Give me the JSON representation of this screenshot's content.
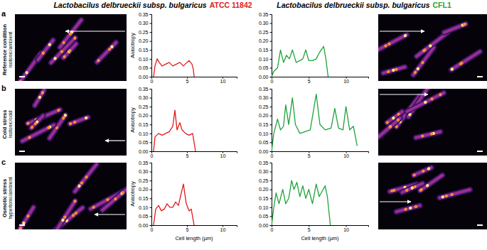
{
  "columns": [
    {
      "species": "Lactobacilus delbrueckii subsp. bulgaricus",
      "strain": "ATCC 11842",
      "color": "#e41a1c"
    },
    {
      "species": "Lactobacilus delbrueckii subsp. bulgaricus",
      "strain": "CFL1",
      "color": "#1fa33a"
    }
  ],
  "panels": [
    {
      "letter": "a",
      "condition": "Reference condition",
      "medium": "isotonic/ambient"
    },
    {
      "letter": "b",
      "condition": "Cold stress",
      "medium": "isotonic/cold"
    },
    {
      "letter": "c",
      "condition": "Osmotic stress",
      "medium": "hypertonic/ambient"
    }
  ],
  "chart_data": [
    {
      "type": "line",
      "color": "#e41a1c",
      "ylabel": "Anisotropy",
      "x": [
        0.3,
        0.5,
        0.8,
        1.1,
        1.5,
        2.0,
        2.5,
        3.0,
        3.5,
        4.0,
        4.5,
        5.0,
        5.3,
        5.7,
        5.9,
        6.0
      ],
      "values": [
        0,
        0.06,
        0.1,
        0.08,
        0.06,
        0.07,
        0.08,
        0.06,
        0.07,
        0.08,
        0.06,
        0.08,
        0.09,
        0.07,
        0.04,
        0
      ],
      "xlim": [
        0,
        12
      ],
      "xticks": [
        0,
        5,
        10
      ],
      "ylim": [
        0,
        0.35
      ],
      "yticks": [
        {
          "value": 0,
          "label": "0.00"
        },
        0.05,
        {
          "value": 0.1,
          "label": "0.10"
        },
        0.15,
        {
          "value": 0.2,
          "label": "0.20"
        },
        0.25,
        {
          "value": 0.3,
          "label": "0.30"
        },
        0.35
      ]
    },
    {
      "type": "line",
      "color": "#1fa33a",
      "x": [
        0,
        0.3,
        0.8,
        1.2,
        1.6,
        2.0,
        2.4,
        2.8,
        3.3,
        3.8,
        4.2,
        4.6,
        5.0,
        5.5,
        6.0,
        6.5,
        7.0,
        7.3,
        7.6
      ],
      "values": [
        0,
        0.03,
        0.05,
        0.15,
        0.08,
        0.12,
        0.1,
        0.15,
        0.08,
        0.09,
        0.1,
        0.15,
        0.09,
        0.09,
        0.1,
        0.14,
        0.17,
        0.1,
        0
      ],
      "xlim": [
        0,
        13
      ],
      "xticks": [
        0,
        5,
        10
      ],
      "ylim": [
        0,
        0.35
      ],
      "yticks": [
        {
          "value": 0,
          "label": "0.00"
        },
        0.05,
        {
          "value": 0.1,
          "label": "0.10"
        },
        0.15,
        {
          "value": 0.2,
          "label": "0.20"
        },
        0.25,
        {
          "value": 0.3,
          "label": "0.30"
        },
        0.35
      ]
    },
    {
      "type": "line",
      "color": "#e41a1c",
      "ylabel": "Anisotropy",
      "x": [
        0.3,
        0.5,
        1.0,
        1.5,
        2.0,
        2.5,
        3.0,
        3.3,
        3.6,
        4.0,
        4.3,
        4.8,
        5.3,
        5.8,
        6.2
      ],
      "values": [
        0,
        0.08,
        0.1,
        0.09,
        0.1,
        0.11,
        0.14,
        0.23,
        0.12,
        0.16,
        0.12,
        0.1,
        0.09,
        0.1,
        0
      ],
      "xlim": [
        0,
        12
      ],
      "xticks": [
        0,
        5,
        10
      ],
      "ylim": [
        0,
        0.35
      ],
      "yticks": [
        {
          "value": 0,
          "label": "0.00"
        },
        0.05,
        {
          "value": 0.1,
          "label": "0.10"
        },
        0.15,
        {
          "value": 0.2,
          "label": "0.20"
        },
        0.25,
        {
          "value": 0.3,
          "label": "0.30"
        },
        0.35
      ]
    },
    {
      "type": "line",
      "color": "#1fa33a",
      "x": [
        0,
        0.3,
        0.8,
        1.2,
        1.6,
        1.9,
        2.3,
        2.8,
        3.2,
        3.8,
        4.5,
        5.2,
        6.0,
        6.5,
        7.2,
        8.0,
        8.5,
        9.0,
        9.6,
        10.0,
        10.5,
        11.0,
        11.5
      ],
      "values": [
        0,
        0.1,
        0.18,
        0.12,
        0.14,
        0.26,
        0.15,
        0.3,
        0.15,
        0.1,
        0.11,
        0.12,
        0.32,
        0.15,
        0.12,
        0.13,
        0.24,
        0.13,
        0.12,
        0.25,
        0.12,
        0.14,
        0.03
      ],
      "xlim": [
        0,
        13
      ],
      "xticks": [
        0,
        5,
        10
      ],
      "ylim": [
        0,
        0.35
      ],
      "yticks": [
        {
          "value": 0,
          "label": "0.00"
        },
        0.05,
        {
          "value": 0.1,
          "label": "0.10"
        },
        0.15,
        {
          "value": 0.2,
          "label": "0.20"
        },
        0.25,
        {
          "value": 0.3,
          "label": "0.30"
        },
        0.35
      ]
    },
    {
      "type": "line",
      "color": "#e41a1c",
      "ylabel": "Anisotropy",
      "xlabel": "Cell length (µm)",
      "x": [
        0.3,
        0.6,
        1.0,
        1.4,
        1.8,
        2.2,
        2.6,
        3.0,
        3.4,
        3.8,
        4.2,
        4.5,
        4.9,
        5.3,
        5.6,
        6.0
      ],
      "values": [
        0,
        0.09,
        0.11,
        0.08,
        0.09,
        0.12,
        0.1,
        0.1,
        0.13,
        0.11,
        0.18,
        0.23,
        0.12,
        0.08,
        0.09,
        0
      ],
      "xlim": [
        0,
        12
      ],
      "xticks": [
        0,
        5,
        10
      ],
      "ylim": [
        0,
        0.35
      ],
      "yticks": [
        {
          "value": 0,
          "label": "0.00"
        },
        0.05,
        {
          "value": 0.1,
          "label": "0.10"
        },
        0.15,
        {
          "value": 0.2,
          "label": "0.20"
        },
        0.25,
        {
          "value": 0.3,
          "label": "0.30"
        },
        0.35
      ]
    },
    {
      "type": "line",
      "color": "#1fa33a",
      "xlabel": "Cell length (µm)",
      "x": [
        0,
        0.3,
        0.6,
        1.0,
        1.5,
        1.9,
        2.3,
        2.7,
        3.0,
        3.4,
        3.8,
        4.2,
        4.6,
        5.0,
        5.5,
        6.0,
        6.4,
        6.8,
        7.2,
        7.5,
        7.9
      ],
      "values": [
        0,
        0.1,
        0.18,
        0.12,
        0.2,
        0.12,
        0.15,
        0.25,
        0.2,
        0.24,
        0.16,
        0.22,
        0.15,
        0.2,
        0.12,
        0.23,
        0.16,
        0.19,
        0.22,
        0.16,
        0
      ],
      "xlim": [
        0,
        13
      ],
      "xticks": [
        0,
        5,
        10
      ],
      "ylim": [
        0,
        0.35
      ],
      "yticks": [
        {
          "value": 0,
          "label": "0.00"
        },
        0.05,
        {
          "value": 0.1,
          "label": "0.10"
        },
        0.15,
        {
          "value": 0.2,
          "label": "0.20"
        },
        0.25,
        {
          "value": 0.3,
          "label": "0.30"
        },
        0.35
      ]
    }
  ]
}
